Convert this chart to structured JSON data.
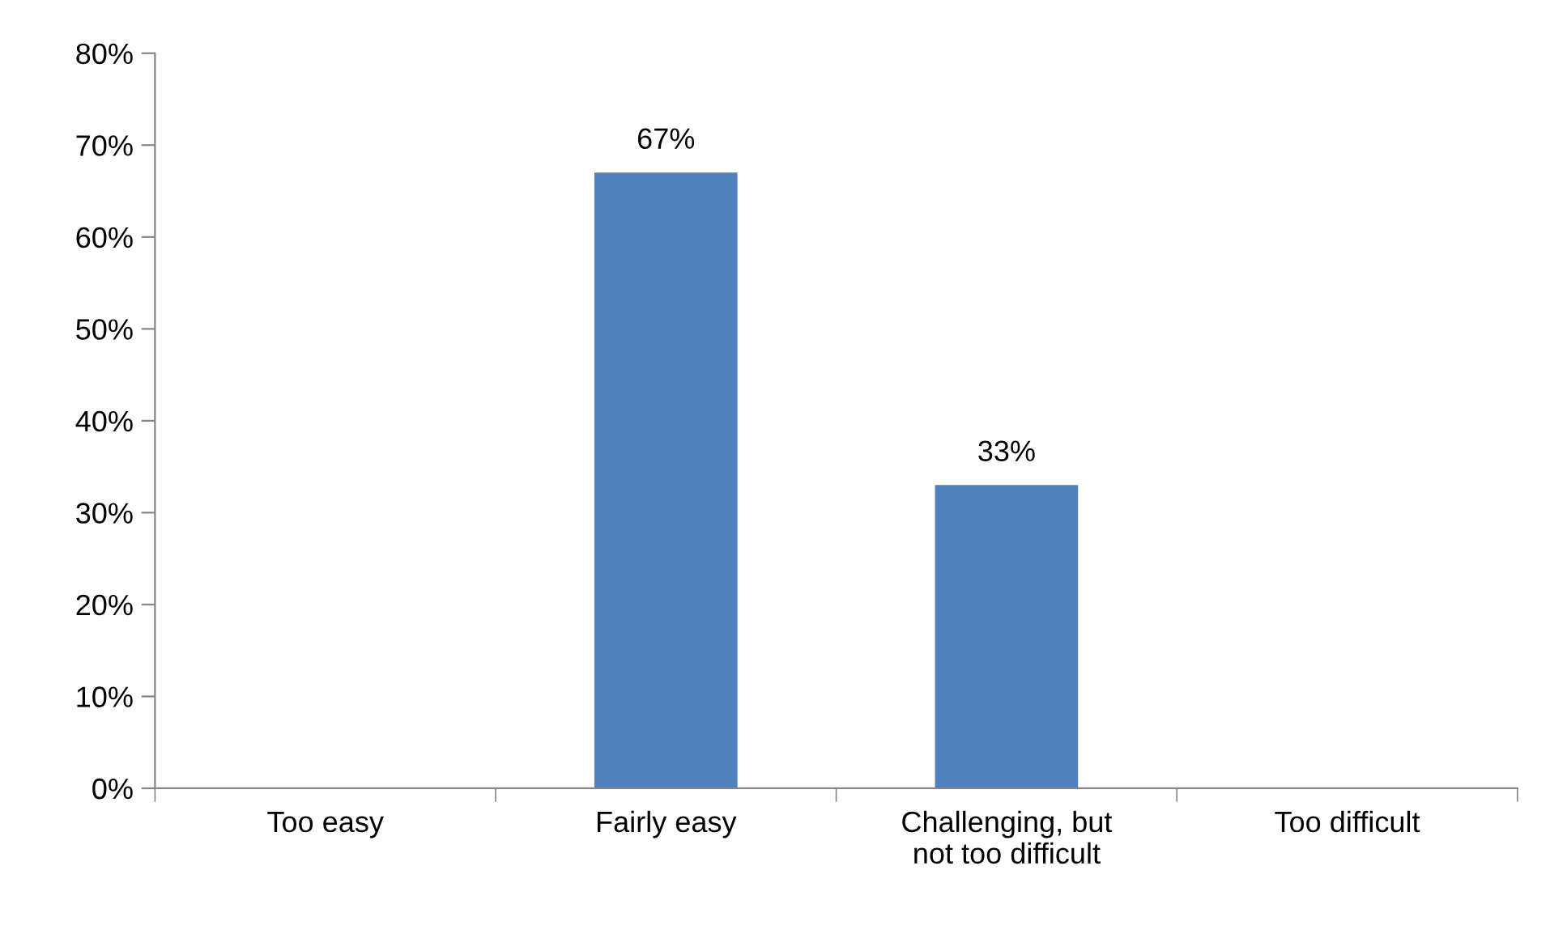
{
  "chart_data": {
    "type": "bar",
    "categories": [
      "Too easy",
      "Fairly easy",
      "Challenging, but\nnot too difficult",
      "Too difficult"
    ],
    "values": [
      0,
      67,
      33,
      0
    ],
    "value_labels": [
      null,
      "67%",
      "33%",
      null
    ],
    "color": "#4f81bd",
    "ylim": [
      0,
      80
    ],
    "yticks": [
      {
        "value": 0,
        "label": "0%"
      },
      {
        "value": 10,
        "label": "10%"
      },
      {
        "value": 20,
        "label": "20%"
      },
      {
        "value": 30,
        "label": "30%"
      },
      {
        "value": 40,
        "label": "40%"
      },
      {
        "value": 50,
        "label": "50%"
      },
      {
        "value": 60,
        "label": "60%"
      },
      {
        "value": 70,
        "label": "70%"
      },
      {
        "value": 80,
        "label": "80%"
      }
    ],
    "grid": false,
    "legend": false
  }
}
